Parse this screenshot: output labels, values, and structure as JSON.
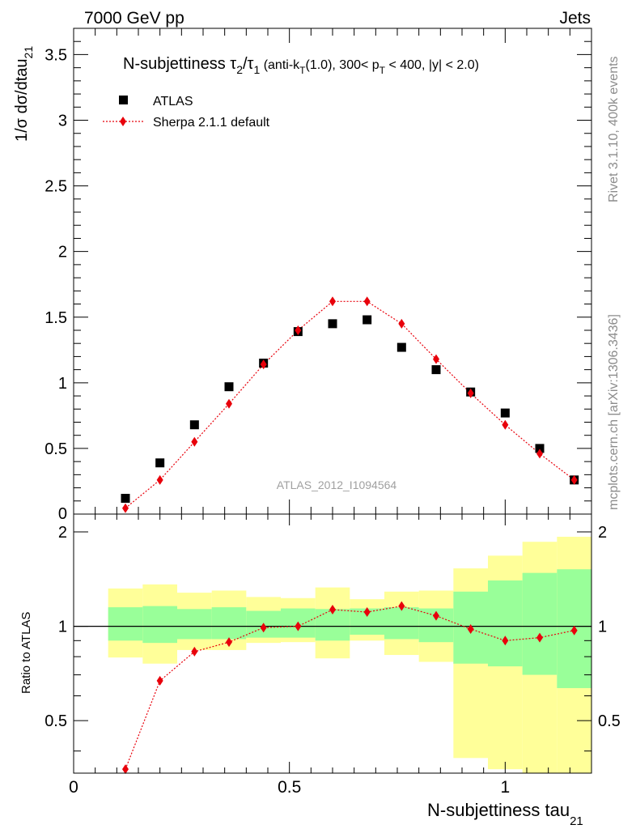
{
  "header": {
    "left": "7000 GeV pp",
    "right": "Jets"
  },
  "side_labels": {
    "rivet": "Rivet 3.1.10,  400k events",
    "mcplots": "mcplots.cern.ch [arXiv:1306.3436]"
  },
  "watermark": "ATLAS_2012_I1094564",
  "chart_data": [
    {
      "type": "scatter",
      "panel": "main",
      "title": {
        "base": "N-subjettiness τ",
        "sub1": "2",
        "slash": "/τ",
        "sub2": "1",
        "cut_a": " (anti-k",
        "cut_sub_t": "T",
        "cut_b": "(1.0), 300< p",
        "cut_c": " < 400, |y| < 2.0)"
      },
      "ylabel": {
        "base": "1/σ dσ/dtau",
        "sub": "21"
      },
      "xlim": [
        0,
        1.2
      ],
      "ylim": [
        0,
        3.7
      ],
      "yticks": [
        0.5,
        1,
        1.5,
        2,
        2.5,
        3,
        3.5
      ],
      "ytick_labels": [
        "0.5",
        "1",
        "1.5",
        "2",
        "2.5",
        "3",
        "3.5"
      ],
      "y_zero_label": "0",
      "legend": {
        "position": "top-left",
        "entries": [
          "ATLAS",
          "Sherpa 2.1.1 default"
        ]
      },
      "series": [
        {
          "name": "ATLAS",
          "marker": "square",
          "color": "#000000",
          "x": [
            0.12,
            0.2,
            0.28,
            0.36,
            0.44,
            0.52,
            0.6,
            0.68,
            0.76,
            0.84,
            0.92,
            1.0,
            1.08,
            1.16
          ],
          "values": [
            0.12,
            0.39,
            0.68,
            0.97,
            1.15,
            1.39,
            1.45,
            1.48,
            1.27,
            1.1,
            0.93,
            0.77,
            0.5,
            0.26
          ]
        },
        {
          "name": "Sherpa 2.1.1 default",
          "marker": "diamond",
          "line": "dotted",
          "color": "#e8000b",
          "x": [
            0.12,
            0.2,
            0.28,
            0.36,
            0.44,
            0.52,
            0.6,
            0.68,
            0.76,
            0.84,
            0.92,
            1.0,
            1.08,
            1.16
          ],
          "values": [
            0.045,
            0.26,
            0.55,
            0.84,
            1.14,
            1.4,
            1.62,
            1.62,
            1.45,
            1.18,
            0.92,
            0.68,
            0.46,
            0.26
          ]
        }
      ]
    },
    {
      "type": "line",
      "panel": "ratio",
      "ylabel": "Ratio to ATLAS",
      "xlabel": {
        "base": "N-subjettiness tau",
        "sub": "21"
      },
      "xlim": [
        0,
        1.2
      ],
      "ylim": [
        0.34,
        2.28
      ],
      "xticks": [
        0,
        0.5,
        1
      ],
      "xtick_labels": [
        "0",
        "0.5",
        "1"
      ],
      "yticks": [
        0.5,
        1,
        2
      ],
      "ytick_labels": [
        "0.5",
        "1",
        "2"
      ],
      "reference_line": 1,
      "bands": {
        "bin_edges": [
          0.08,
          0.16,
          0.24,
          0.32,
          0.4,
          0.48,
          0.56,
          0.64,
          0.72,
          0.8,
          0.88,
          0.96,
          1.04,
          1.12,
          1.2
        ],
        "inner_low": [
          0.9,
          0.885,
          0.91,
          0.91,
          0.92,
          0.92,
          0.9,
          0.94,
          0.91,
          0.89,
          0.76,
          0.745,
          0.7,
          0.635
        ],
        "inner_high": [
          1.15,
          1.16,
          1.135,
          1.15,
          1.12,
          1.14,
          1.135,
          1.14,
          1.15,
          1.14,
          1.29,
          1.4,
          1.48,
          1.52
        ],
        "outer_low": [
          0.795,
          0.76,
          0.84,
          0.84,
          0.885,
          0.89,
          0.79,
          0.9,
          0.81,
          0.77,
          0.38,
          0.35,
          0.34,
          0.34
        ],
        "outer_high": [
          1.32,
          1.36,
          1.28,
          1.3,
          1.24,
          1.23,
          1.33,
          1.22,
          1.29,
          1.3,
          1.53,
          1.68,
          1.86,
          1.93
        ],
        "inner_color": "#99ff99",
        "outer_color": "#ffff99"
      },
      "series": [
        {
          "name": "Sherpa 2.1.1 default / ATLAS",
          "marker": "diamond",
          "line": "dotted",
          "color": "#e8000b",
          "x": [
            0.12,
            0.2,
            0.28,
            0.36,
            0.44,
            0.52,
            0.6,
            0.68,
            0.76,
            0.84,
            0.92,
            1.0,
            1.08,
            1.16
          ],
          "values": [
            0.35,
            0.67,
            0.83,
            0.89,
            0.99,
            1.0,
            1.13,
            1.11,
            1.16,
            1.08,
            0.98,
            0.9,
            0.92,
            0.97
          ]
        }
      ]
    }
  ]
}
